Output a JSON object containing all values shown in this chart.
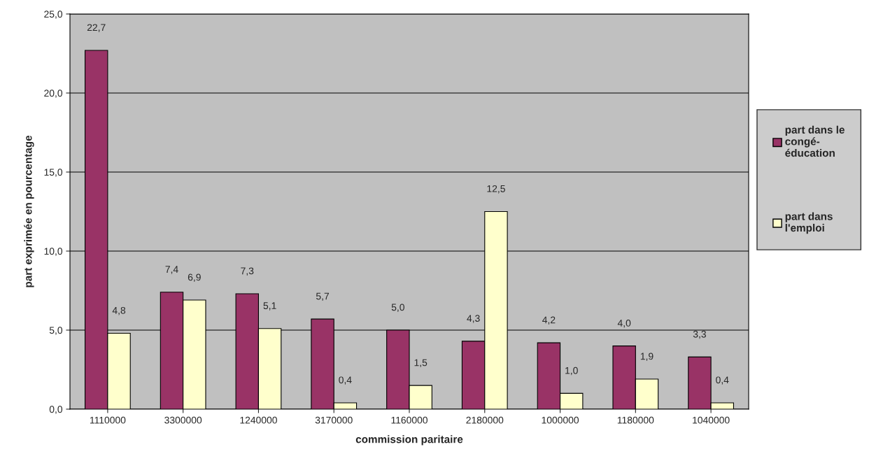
{
  "chart_data": {
    "type": "bar",
    "xlabel": "commission paritaire",
    "ylabel": "part exprimée en pourcentage",
    "categories": [
      "1110000",
      "3300000",
      "1240000",
      "3170000",
      "1160000",
      "2180000",
      "1000000",
      "1180000",
      "1040000"
    ],
    "series": [
      {
        "name": "part dans le congé-éducation",
        "color": "#993366",
        "values": [
          22.7,
          7.4,
          7.3,
          5.7,
          5.0,
          4.3,
          4.2,
          4.0,
          3.3
        ],
        "value_labels": [
          "22,7",
          "7,4",
          "7,3",
          "5,7",
          "5,0",
          "4,3",
          "4,2",
          "4,0",
          "3,3"
        ]
      },
      {
        "name": "part dans l'emploi",
        "color": "#ffffcc",
        "values": [
          4.8,
          6.9,
          5.1,
          0.4,
          1.5,
          12.5,
          1.0,
          1.9,
          0.4
        ],
        "value_labels": [
          "4,8",
          "6,9",
          "5,1",
          "0,4",
          "1,5",
          "12,5",
          "1,0",
          "1,9",
          "0,4"
        ]
      }
    ],
    "ylim": [
      0,
      25
    ],
    "yticks": [
      {
        "value": 0,
        "label": "0,0"
      },
      {
        "value": 5,
        "label": "5,0"
      },
      {
        "value": 10,
        "label": "10,0"
      },
      {
        "value": 15,
        "label": "15,0"
      },
      {
        "value": 20,
        "label": "20,0"
      },
      {
        "value": 25,
        "label": "25,0"
      }
    ],
    "grid": "y",
    "legend": "right"
  }
}
